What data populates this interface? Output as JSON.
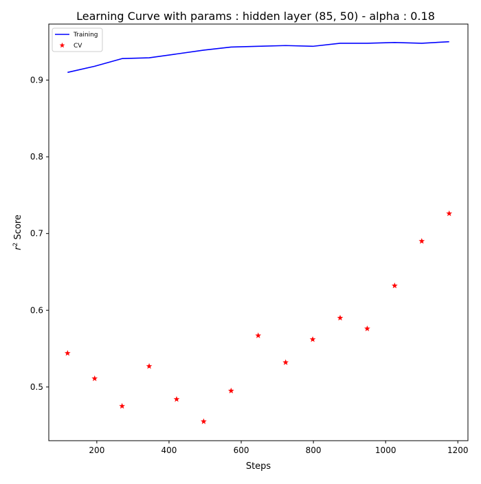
{
  "chart_data": {
    "type": "line",
    "title": "Learning Curve with params : hidden layer (85, 50) - alpha : 0.18",
    "xlabel": "Steps",
    "ylabel_prefix": "r",
    "ylabel_superscript": "2",
    "ylabel_suffix": " Score",
    "xlim": [
      67,
      1228
    ],
    "ylim": [
      0.43,
      0.973
    ],
    "xticks": [
      200,
      400,
      600,
      800,
      1000,
      1200
    ],
    "yticks": [
      0.5,
      0.6,
      0.7,
      0.8,
      0.9
    ],
    "legend_position": "top-left",
    "grid": false,
    "series": [
      {
        "name": "Training",
        "type": "line",
        "color": "#0000ff",
        "x": [
          119,
          194,
          270,
          345,
          421,
          496,
          572,
          647,
          723,
          798,
          874,
          949,
          1025,
          1100,
          1176
        ],
        "y": [
          0.91,
          0.918,
          0.928,
          0.929,
          0.934,
          0.939,
          0.943,
          0.944,
          0.945,
          0.944,
          0.948,
          0.948,
          0.949,
          0.948,
          0.95
        ]
      },
      {
        "name": "CV",
        "type": "scatter",
        "marker": "star",
        "color": "#ff0000",
        "x": [
          119,
          194,
          270,
          345,
          421,
          496,
          572,
          647,
          723,
          798,
          874,
          949,
          1025,
          1100,
          1176
        ],
        "y": [
          0.544,
          0.511,
          0.475,
          0.527,
          0.484,
          0.455,
          0.495,
          0.567,
          0.532,
          0.562,
          0.59,
          0.576,
          0.632,
          0.69,
          0.726
        ]
      }
    ]
  }
}
